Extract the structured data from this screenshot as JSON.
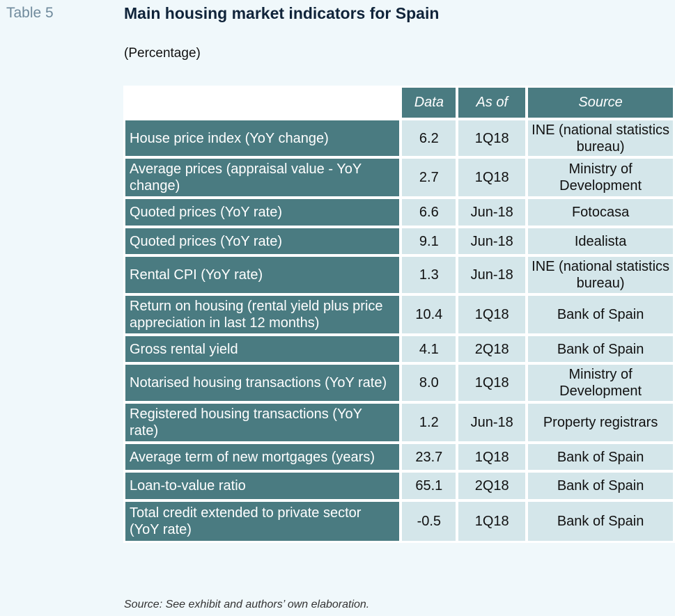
{
  "table_label": "Table 5",
  "title": "Main housing market indicators for Spain",
  "subtitle": "(Percentage)",
  "columns": {
    "data": "Data",
    "as_of": "As of",
    "source": "Source"
  },
  "rows": [
    {
      "indicator": "House price index (YoY change)",
      "data": "6.2",
      "as_of": "1Q18",
      "source": "INE (national statistics bureau)"
    },
    {
      "indicator": "Average prices (appraisal value - YoY change)",
      "data": "2.7",
      "as_of": "1Q18",
      "source": "Ministry of Development"
    },
    {
      "indicator": "Quoted prices (YoY rate)",
      "data": "6.6",
      "as_of": "Jun-18",
      "source": "Fotocasa"
    },
    {
      "indicator": "Quoted prices (YoY rate)",
      "data": "9.1",
      "as_of": "Jun-18",
      "source": "Idealista"
    },
    {
      "indicator": "Rental CPI (YoY rate)",
      "data": "1.3",
      "as_of": "Jun-18",
      "source": "INE (national statistics bureau)"
    },
    {
      "indicator": "Return on housing (rental yield plus price appreciation in last 12 months)",
      "data": "10.4",
      "as_of": "1Q18",
      "source": "Bank of Spain"
    },
    {
      "indicator": "Gross rental yield",
      "data": "4.1",
      "as_of": "2Q18",
      "source": "Bank of Spain"
    },
    {
      "indicator": "Notarised housing transactions (YoY rate)",
      "data": "8.0",
      "as_of": "1Q18",
      "source": "Ministry of Development"
    },
    {
      "indicator": "Registered housing transactions (YoY rate)",
      "data": "1.2",
      "as_of": "Jun-18",
      "source": "Property registrars"
    },
    {
      "indicator": "Average term of new mortgages (years)",
      "data": "23.7",
      "as_of": "1Q18",
      "source": "Bank of Spain"
    },
    {
      "indicator": "Loan-to-value ratio",
      "data": "65.1",
      "as_of": "2Q18",
      "source": "Bank of Spain"
    },
    {
      "indicator": "Total credit extended to private sector (YoY rate)",
      "data": "-0.5",
      "as_of": "1Q18",
      "source": "Bank of Spain"
    }
  ],
  "source_note": "Source: See exhibit and authors’ own elaboration.",
  "colors": {
    "header_bg": "#4a7b81",
    "cell_bg": "#d4e6ea",
    "page_bg": "#f0f8fb",
    "title": "#10243a"
  }
}
